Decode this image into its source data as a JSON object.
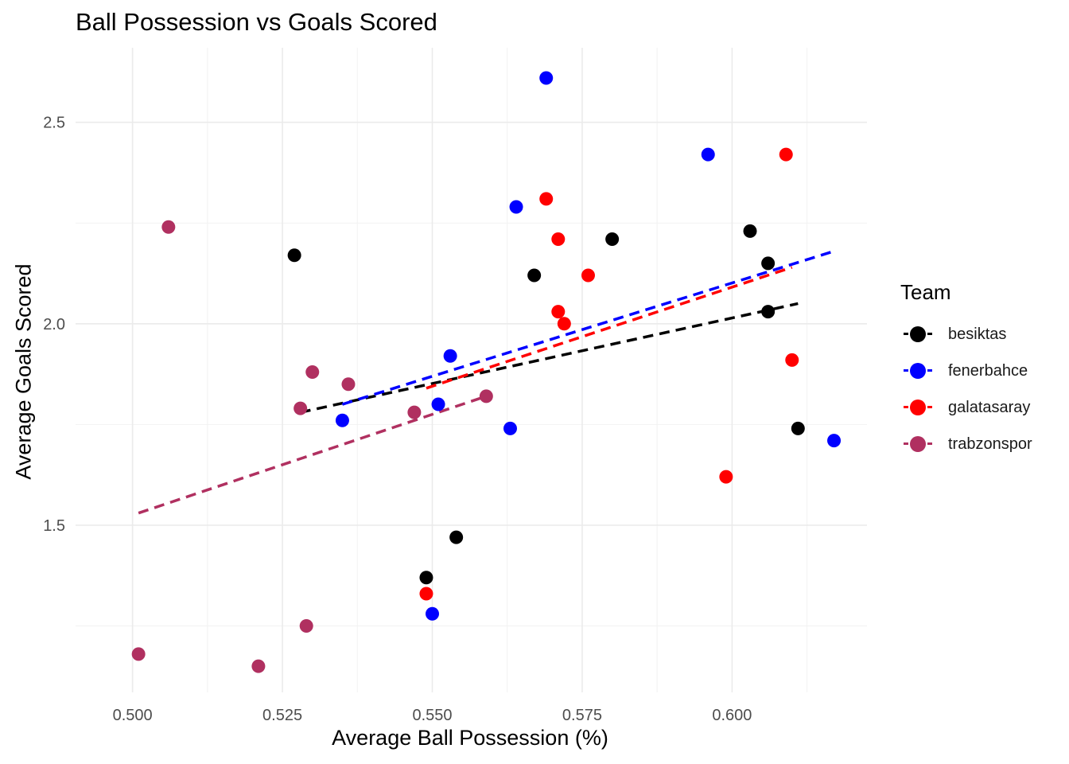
{
  "chart_data": {
    "type": "scatter",
    "title": "Ball Possession vs Goals Scored",
    "xlabel": "Average Ball Possession (%)",
    "ylabel": "Average Goals Scored",
    "xlim": [
      0.4905,
      0.6225
    ],
    "ylim": [
      1.085,
      2.685
    ],
    "x_ticks": [
      0.5,
      0.525,
      0.55,
      0.575,
      0.6
    ],
    "x_tick_labels": [
      "0.500",
      "0.525",
      "0.550",
      "0.575",
      "0.600"
    ],
    "y_ticks": [
      1.5,
      2.0,
      2.5
    ],
    "y_tick_labels": [
      "1.5",
      "2.0",
      "2.5"
    ],
    "grid": true,
    "legend": {
      "title": "Team",
      "position": "right"
    },
    "series": [
      {
        "name": "besiktas",
        "color": "#000000",
        "x": [
          0.527,
          0.549,
          0.554,
          0.567,
          0.58,
          0.603,
          0.606,
          0.606,
          0.611
        ],
        "y": [
          2.17,
          1.37,
          1.47,
          2.12,
          2.21,
          2.23,
          2.15,
          2.03,
          1.74
        ],
        "trend": {
          "x": [
            0.528,
            0.611
          ],
          "y": [
            1.78,
            2.05
          ]
        }
      },
      {
        "name": "fenerbahce",
        "color": "#0000ff",
        "x": [
          0.535,
          0.55,
          0.551,
          0.553,
          0.563,
          0.564,
          0.569,
          0.596,
          0.617
        ],
        "y": [
          1.76,
          1.28,
          1.8,
          1.92,
          1.74,
          2.29,
          2.61,
          2.42,
          1.71
        ],
        "trend": {
          "x": [
            0.535,
            0.617
          ],
          "y": [
            1.8,
            2.18
          ]
        }
      },
      {
        "name": "galatasaray",
        "color": "#ff0000",
        "x": [
          0.549,
          0.569,
          0.571,
          0.571,
          0.572,
          0.576,
          0.599,
          0.609,
          0.61
        ],
        "y": [
          1.33,
          2.31,
          2.21,
          2.03,
          2.0,
          2.12,
          1.62,
          2.42,
          1.91
        ],
        "trend": {
          "x": [
            0.549,
            0.61
          ],
          "y": [
            1.84,
            2.14
          ]
        }
      },
      {
        "name": "trabzonspor",
        "color": "#b03060",
        "x": [
          0.501,
          0.506,
          0.521,
          0.528,
          0.529,
          0.53,
          0.536,
          0.547,
          0.559
        ],
        "y": [
          1.18,
          2.24,
          1.15,
          1.79,
          1.25,
          1.88,
          1.85,
          1.78,
          1.82
        ],
        "trend": {
          "x": [
            0.501,
            0.559
          ],
          "y": [
            1.53,
            1.82
          ]
        }
      }
    ]
  }
}
